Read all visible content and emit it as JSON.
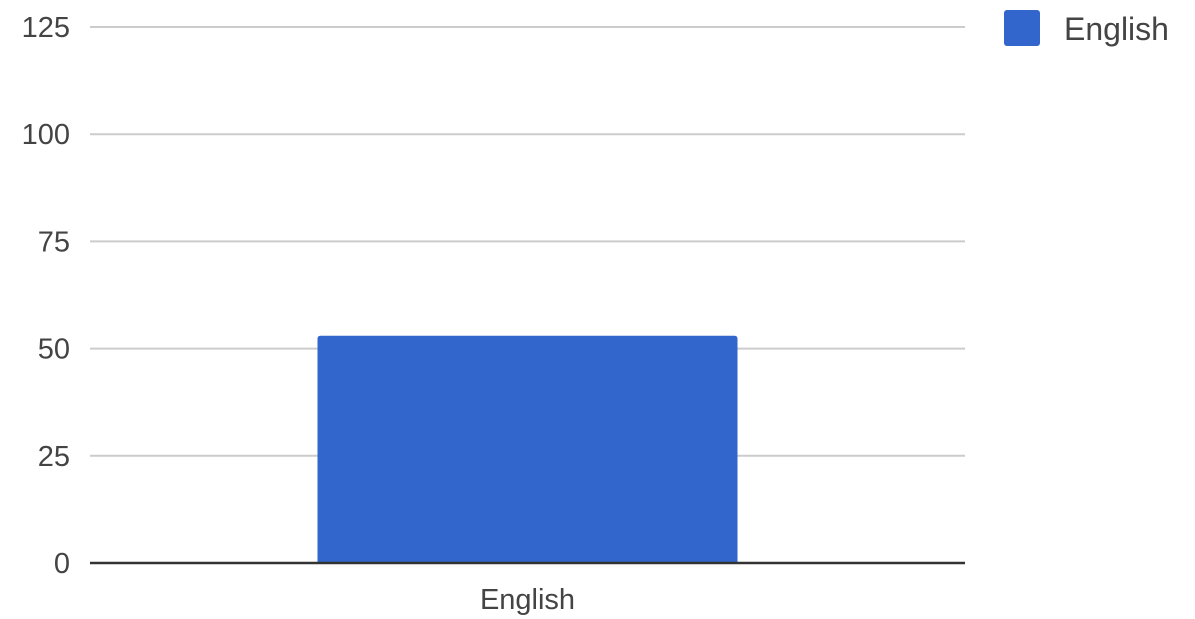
{
  "chart_data": {
    "type": "bar",
    "categories": [
      "English"
    ],
    "series": [
      {
        "name": "English",
        "values": [
          53
        ],
        "color": "#3366cc"
      }
    ],
    "yticks": [
      0,
      25,
      50,
      75,
      100,
      125
    ],
    "ylim": [
      0,
      125
    ],
    "grid": true,
    "legend_position": "top-right",
    "title": "",
    "xlabel": "",
    "ylabel": ""
  }
}
